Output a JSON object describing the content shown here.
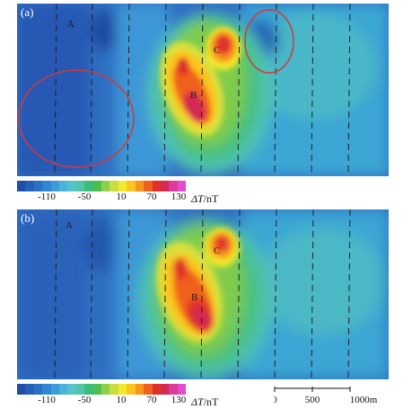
{
  "panels": [
    {
      "label": "(a)",
      "points": [
        "A",
        "B",
        "C"
      ]
    },
    {
      "label": "(b)",
      "points": [
        "A",
        "B",
        "C"
      ]
    }
  ],
  "colorbar": {
    "ticks": [
      "-110",
      "-50",
      "10",
      "70",
      "130"
    ],
    "symbol": "ΔT",
    "unit": "/nT",
    "colors": [
      "#1e4fa8",
      "#2460b8",
      "#2a72c6",
      "#2f86d1",
      "#3d9cd8",
      "#4bb2d8",
      "#55c3cc",
      "#4fc6a8",
      "#3dbb7a",
      "#4cbf4d",
      "#8fd04a",
      "#c8de3e",
      "#f4ea2c",
      "#fcc41f",
      "#f8951c",
      "#f0601e",
      "#e0302a",
      "#d22a52",
      "#dd3aa0",
      "#e44cd0"
    ]
  },
  "scale": {
    "labels": [
      "0",
      "500",
      "1000m"
    ]
  }
}
